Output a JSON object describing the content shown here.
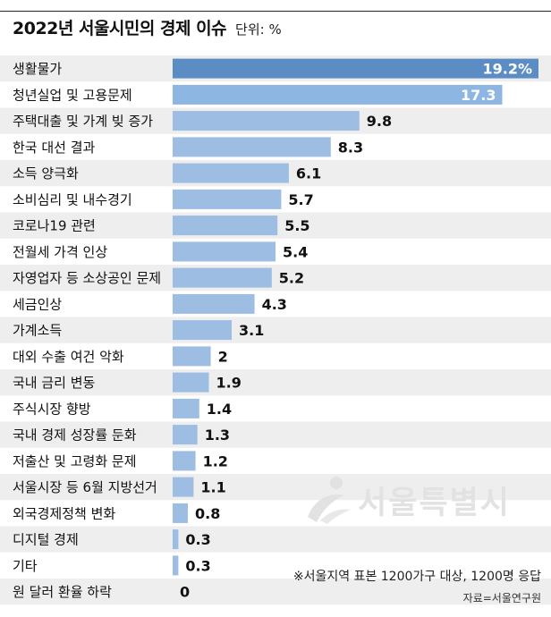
{
  "header": {
    "title": "2022년 서울시민의 경제 이슈",
    "unit": "단위: %"
  },
  "footer": {
    "note": "※서울지역 표본 1200가구 대상, 1200명 응답",
    "source": "자료=서울연구원"
  },
  "watermark": {
    "text": "서울특별시"
  },
  "colors": {
    "bar_top": "#5b8dc4",
    "bar_second": "#8eb6e2",
    "bar_rest": "#9dbde3",
    "stripe": "#eeeeee",
    "value_inside": "#ffffff",
    "value_outside": "#111111"
  },
  "chart_data": {
    "type": "bar",
    "orientation": "horizontal",
    "title": "2022년 서울시민의 경제 이슈",
    "unit": "%",
    "categories": [
      "생활물가",
      "청년실업 및 고용문제",
      "주택대출 및 가계 빚 증가",
      "한국 대선 결과",
      "소득 양극화",
      "소비심리 및 내수경기",
      "코로나19 관련",
      "전월세 가격 인상",
      "자영업자 등 소상공인 문제",
      "세금인상",
      "가계소득",
      "대외 수출 여건 악화",
      "국내 금리 변동",
      "주식시장 향방",
      "국내 경제 성장률 둔화",
      "저출산 및 고령화 문제",
      "서울시장 등 6월 지방선거",
      "외국경제정책 변화",
      "디지털 경제",
      "기타",
      "원 달러 환율 하락"
    ],
    "values": [
      19.2,
      17.3,
      9.8,
      8.3,
      6.1,
      5.7,
      5.5,
      5.4,
      5.2,
      4.3,
      3.1,
      2,
      1.9,
      1.4,
      1.3,
      1.2,
      1.1,
      0.8,
      0.3,
      0.3,
      0
    ],
    "labels": [
      "19.2%",
      "17.3",
      "9.8",
      "8.3",
      "6.1",
      "5.7",
      "5.5",
      "5.4",
      "5.2",
      "4.3",
      "3.1",
      "2",
      "1.9",
      "1.4",
      "1.3",
      "1.2",
      "1.1",
      "0.8",
      "0.3",
      "0.3",
      "0"
    ],
    "xlim": [
      0,
      19.2
    ],
    "grid": false,
    "legend": "none"
  }
}
